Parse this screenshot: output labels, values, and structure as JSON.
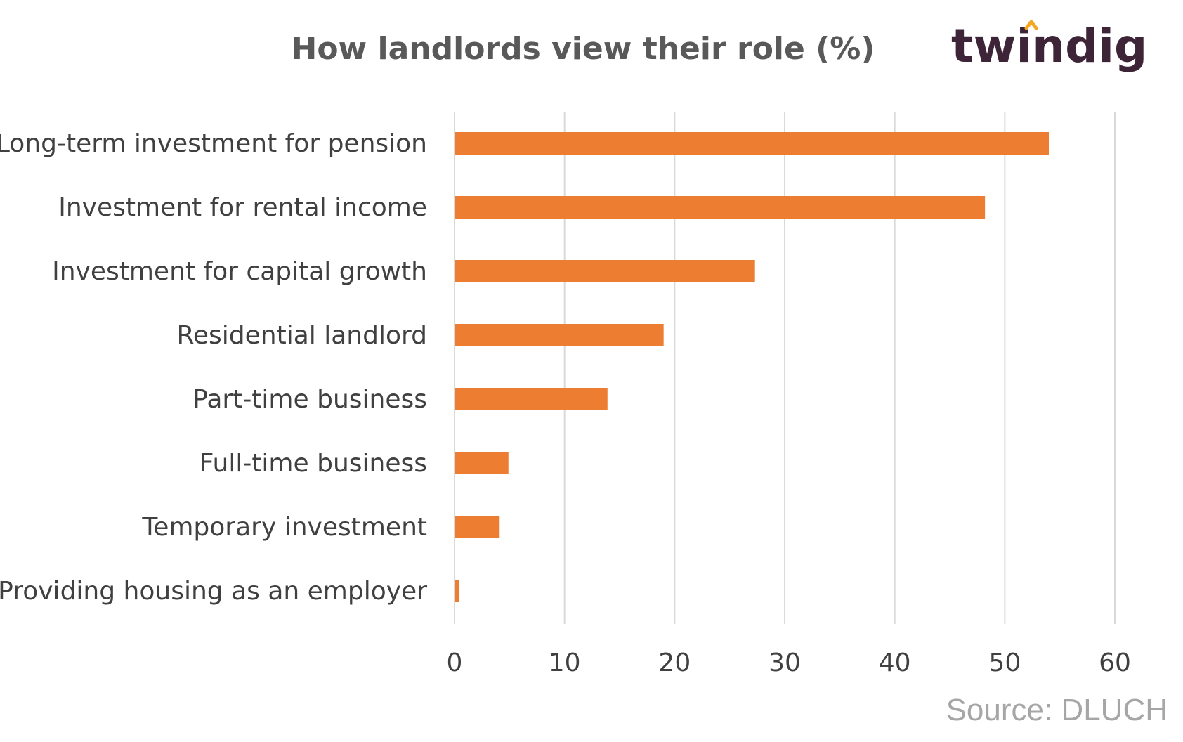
{
  "logo": {
    "text": "twindig",
    "text_color": "#3d2437",
    "accent_color": "#f5a623"
  },
  "source": "Source: DLUCH",
  "chart_data": {
    "type": "bar",
    "orientation": "horizontal",
    "title": "How landlords  view their role (%)",
    "categories": [
      "Long-term investment for pension",
      "Investment for rental income",
      "Investment for capital growth",
      "Residential landlord",
      "Part-time business",
      "Full-time business",
      "Temporary investment",
      "Providing housing as an employer"
    ],
    "values": [
      54,
      48.2,
      27.3,
      19,
      13.9,
      4.9,
      4.1,
      0.4
    ],
    "xlabel": "",
    "ylabel": "",
    "xlim": [
      0,
      60
    ],
    "xticks": [
      0,
      10,
      20,
      30,
      40,
      50,
      60
    ],
    "grid": "vertical",
    "legend": "none",
    "bar_color": "#ed7d31",
    "grid_color": "#d9d9d9"
  }
}
